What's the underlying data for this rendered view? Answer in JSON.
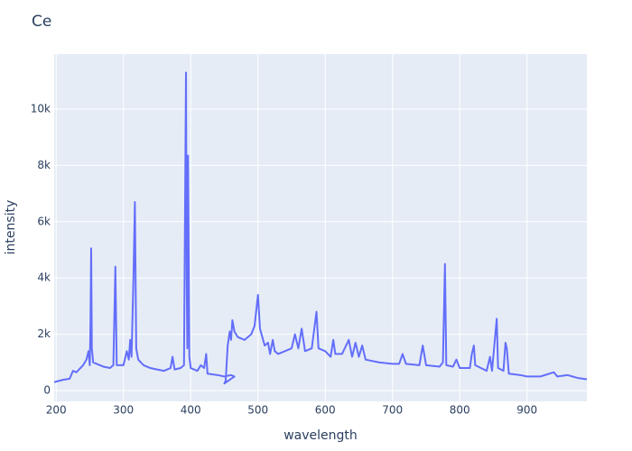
{
  "chart_data": {
    "type": "line",
    "title": "Ce",
    "x_label": "wavelength",
    "y_label": "intensity",
    "x": [
      197,
      210,
      220,
      225,
      230,
      240,
      245,
      248,
      250,
      251,
      252,
      253,
      255,
      260,
      270,
      280,
      285,
      288,
      290,
      300,
      305,
      308,
      310,
      312,
      315,
      317,
      319,
      322,
      330,
      340,
      350,
      360,
      370,
      373,
      376,
      385,
      390,
      393,
      394,
      395,
      396,
      397,
      398,
      400,
      410,
      415,
      420,
      423,
      425,
      440,
      450,
      460,
      465,
      450,
      452,
      455,
      458,
      460,
      462,
      465,
      470,
      480,
      490,
      495,
      500,
      503,
      510,
      515,
      518,
      522,
      525,
      530,
      540,
      550,
      555,
      560,
      565,
      570,
      580,
      587,
      590,
      600,
      608,
      612,
      615,
      625,
      635,
      640,
      645,
      650,
      655,
      660,
      680,
      700,
      710,
      715,
      720,
      740,
      745,
      750,
      770,
      775,
      778,
      780,
      790,
      795,
      800,
      815,
      818,
      821,
      823,
      840,
      845,
      848,
      855,
      857,
      865,
      868,
      870,
      873,
      890,
      900,
      920,
      940,
      945,
      960,
      975,
      989
    ],
    "series": [
      {
        "name": "intensity",
        "color": "#636efa",
        "values": [
          300,
          380,
          420,
          700,
          650,
          900,
          1100,
          1400,
          900,
          2400,
          5050,
          1500,
          1000,
          950,
          850,
          800,
          900,
          4400,
          900,
          900,
          1400,
          1100,
          1800,
          1200,
          4100,
          6700,
          1500,
          1100,
          900,
          800,
          750,
          700,
          800,
          1200,
          750,
          800,
          900,
          11300,
          4000,
          1500,
          8350,
          5000,
          1200,
          800,
          700,
          900,
          800,
          1300,
          600,
          550,
          500,
          550,
          500,
          250,
          350,
          1600,
          2100,
          1800,
          2500,
          2100,
          1900,
          1800,
          2000,
          2300,
          3400,
          2200,
          1600,
          1700,
          1300,
          1800,
          1400,
          1300,
          1400,
          1500,
          2000,
          1500,
          2200,
          1400,
          1500,
          2800,
          1500,
          1400,
          1200,
          1800,
          1300,
          1300,
          1800,
          1200,
          1700,
          1200,
          1600,
          1100,
          1000,
          950,
          950,
          1300,
          950,
          900,
          1600,
          900,
          850,
          1000,
          4500,
          900,
          850,
          1100,
          800,
          800,
          1300,
          1600,
          900,
          700,
          1200,
          700,
          2550,
          800,
          700,
          1700,
          1500,
          600,
          550,
          500,
          500,
          650,
          500,
          550,
          450,
          400
        ]
      }
    ],
    "xlim": [
      197,
      989
    ],
    "ylim": [
      -385,
      11955
    ],
    "xticks": [
      200,
      300,
      400,
      500,
      600,
      700,
      800,
      900
    ],
    "yticks": [
      0,
      {
        "value": 2000,
        "label": "2k"
      },
      {
        "value": 4000,
        "label": "4k"
      },
      {
        "value": 6000,
        "label": "6k"
      },
      {
        "value": 8000,
        "label": "8k"
      },
      {
        "value": 10000,
        "label": "10k"
      }
    ],
    "grid": true
  }
}
